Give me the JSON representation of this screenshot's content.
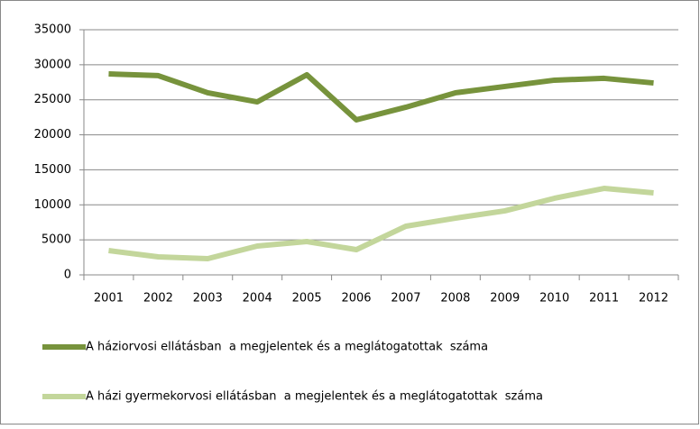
{
  "chart_data": {
    "type": "line",
    "categories": [
      "2001",
      "2002",
      "2003",
      "2004",
      "2005",
      "2006",
      "2007",
      "2008",
      "2009",
      "2010",
      "2011",
      "2012"
    ],
    "series": [
      {
        "name": "A háziorvosi ellátásban  a megjelentek és a meglátogatottak  száma",
        "color": "#77933c",
        "values": [
          28700,
          28450,
          26000,
          24700,
          28570,
          22140,
          23940,
          26000,
          26900,
          27800,
          28060,
          27400
        ]
      },
      {
        "name": "A házi gyermekorvosi ellátásban  a megjelentek és a meglátogatottak  száma",
        "color": "#c3d69b",
        "values": [
          3470,
          2570,
          2320,
          4120,
          4760,
          3600,
          6950,
          8100,
          9140,
          10940,
          12350,
          11710
        ]
      }
    ],
    "ylim": [
      0,
      35000
    ],
    "yticks": [
      0,
      5000,
      10000,
      15000,
      20000,
      25000,
      30000,
      35000
    ],
    "grid": true,
    "legend": "bottom"
  }
}
